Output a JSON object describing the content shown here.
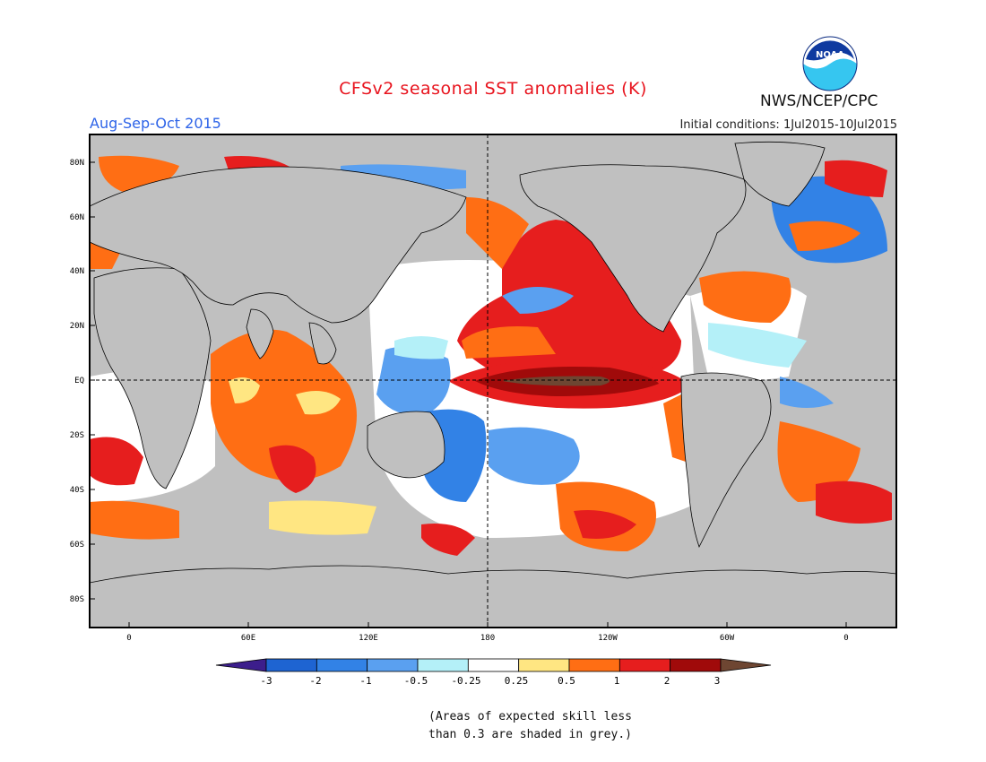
{
  "header": {
    "title": "CFSv2 seasonal SST anomalies (K)",
    "season": "Aug-Sep-Oct 2015",
    "initial_conditions": "Initial conditions: 1Jul2015-10Jul2015",
    "agency": "NWS/NCEP/CPC",
    "logo_text": "NOAA"
  },
  "map": {
    "lat_labels": [
      "80N",
      "60N",
      "40N",
      "20N",
      "EQ",
      "20S",
      "40S",
      "60S",
      "80S"
    ],
    "lon_labels": [
      "0",
      "60E",
      "120E",
      "180",
      "120W",
      "60W",
      "0"
    ],
    "land_color": "#c0c0c0",
    "reference_lines": [
      "EQ",
      "180"
    ]
  },
  "legend": {
    "ticks": [
      "-3",
      "-2",
      "-1",
      "-0.5",
      "-0.25",
      "0.25",
      "0.5",
      "1",
      "2",
      "3"
    ],
    "colors": [
      "#3c1e8c",
      "#1e64d2",
      "#3282e6",
      "#5aa0f0",
      "#b4f0f8",
      "#ffffff",
      "#ffe682",
      "#ff6e14",
      "#e61e1e",
      "#a00a0a",
      "#6e4632"
    ]
  },
  "footnote": {
    "line1": "(Areas of expected skill less",
    "line2": "than 0.3 are shaded in grey.)"
  }
}
